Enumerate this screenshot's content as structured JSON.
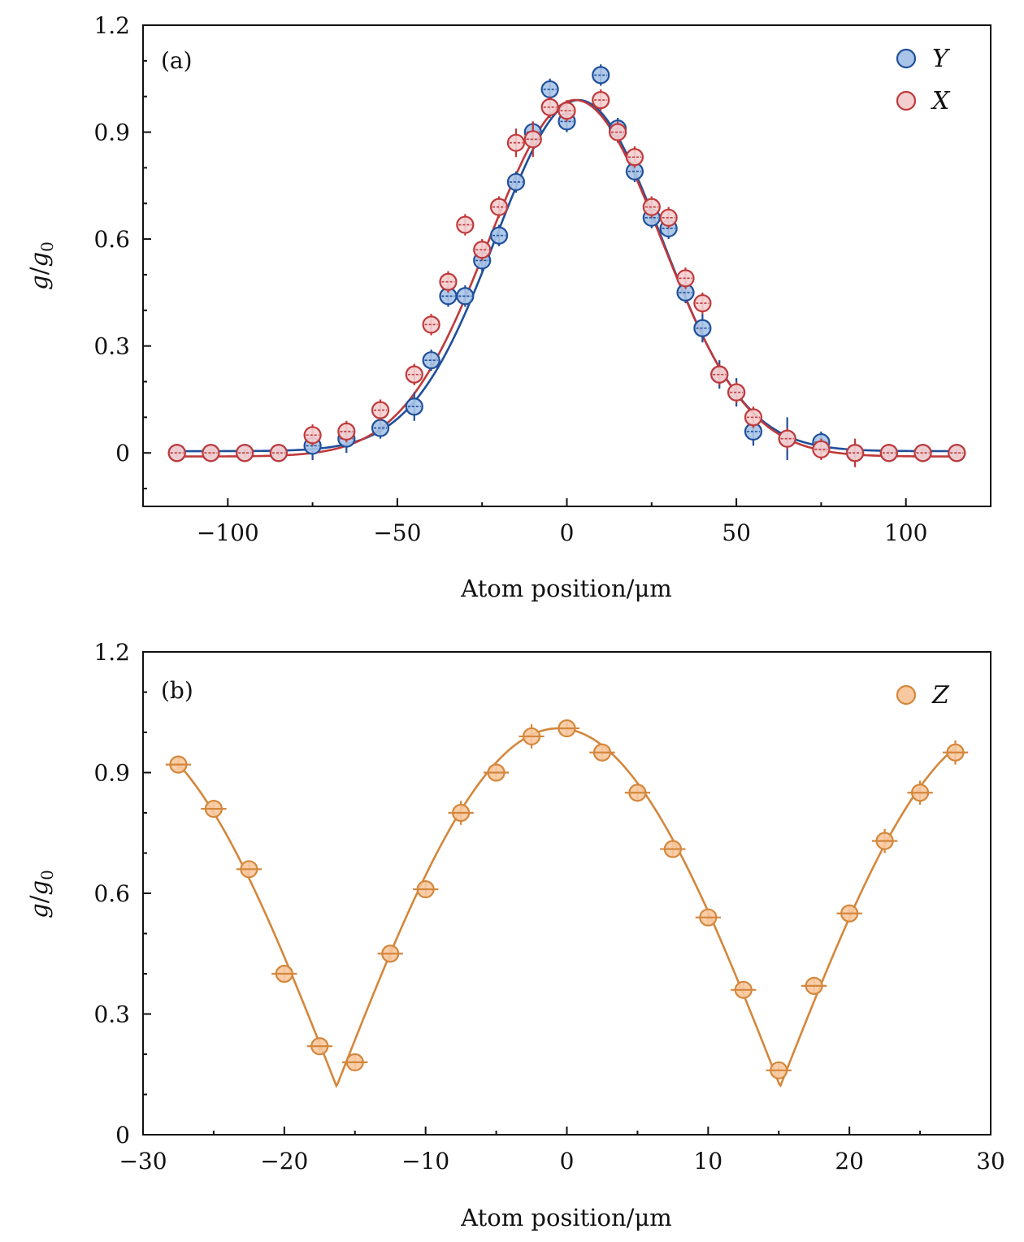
{
  "chart_data": [
    {
      "type": "scatter",
      "panel_label": "(a)",
      "xlabel": "Atom position/μm",
      "ylabel_main": "g",
      "ylabel_sub": "0",
      "xlim": [
        -125,
        125
      ],
      "ylim": [
        -0.15,
        1.2
      ],
      "xticks": [
        -100,
        -50,
        0,
        50,
        100
      ],
      "xtick_labels": [
        "−100",
        "−50",
        "0",
        "50",
        "100"
      ],
      "yticks": [
        0,
        0.3,
        0.6,
        0.9,
        1.2
      ],
      "ytick_labels": [
        "0",
        "0.3",
        "0.6",
        "0.9",
        "1.2"
      ],
      "legend_position": "top-right",
      "series": [
        {
          "name": "Y",
          "fill": "#a9c4e8",
          "edge": "#1f4f9a",
          "x": [
            -115,
            -105,
            -95,
            -85,
            -75,
            -65,
            -55,
            -45,
            -40,
            -35,
            -30,
            -25,
            -20,
            -15,
            -10,
            -5,
            0,
            10,
            15,
            20,
            25,
            30,
            35,
            40,
            45,
            50,
            55,
            65,
            75,
            85,
            95,
            105,
            115
          ],
          "y": [
            0.0,
            0.0,
            0.0,
            0.0,
            0.02,
            0.04,
            0.07,
            0.13,
            0.26,
            0.44,
            0.44,
            0.54,
            0.61,
            0.76,
            0.9,
            1.02,
            0.93,
            1.06,
            0.91,
            0.79,
            0.66,
            0.63,
            0.45,
            0.35,
            0.22,
            0.17,
            0.06,
            0.04,
            0.03,
            0.0,
            0.0,
            0.0,
            0.0
          ],
          "yerr": [
            0.01,
            0.01,
            0.01,
            0.01,
            0.04,
            0.04,
            0.03,
            0.04,
            0.03,
            0.03,
            0.03,
            0.03,
            0.03,
            0.03,
            0.03,
            0.03,
            0.03,
            0.03,
            0.03,
            0.03,
            0.03,
            0.03,
            0.03,
            0.04,
            0.04,
            0.04,
            0.04,
            0.06,
            0.03,
            0.02,
            0.01,
            0.01,
            0.01
          ]
        },
        {
          "name": "X",
          "fill": "#f4cfd0",
          "edge": "#c0393b",
          "x": [
            -115,
            -105,
            -95,
            -85,
            -75,
            -65,
            -55,
            -45,
            -40,
            -35,
            -30,
            -25,
            -20,
            -15,
            -10,
            -5,
            0,
            10,
            15,
            20,
            25,
            30,
            35,
            40,
            45,
            50,
            55,
            65,
            75,
            85,
            95,
            105,
            115
          ],
          "y": [
            0.0,
            0.0,
            0.0,
            0.0,
            0.05,
            0.06,
            0.12,
            0.22,
            0.36,
            0.48,
            0.64,
            0.57,
            0.69,
            0.87,
            0.88,
            0.97,
            0.96,
            0.99,
            0.9,
            0.83,
            0.69,
            0.66,
            0.49,
            0.42,
            0.22,
            0.17,
            0.1,
            0.04,
            0.01,
            0.0,
            0.0,
            0.0,
            0.0
          ],
          "yerr": [
            0.01,
            0.01,
            0.01,
            0.01,
            0.03,
            0.03,
            0.03,
            0.03,
            0.03,
            0.03,
            0.03,
            0.03,
            0.03,
            0.04,
            0.05,
            0.03,
            0.03,
            0.03,
            0.03,
            0.03,
            0.03,
            0.03,
            0.03,
            0.03,
            0.03,
            0.03,
            0.03,
            0.03,
            0.03,
            0.04,
            0.01,
            0.01,
            0.01
          ]
        }
      ]
    },
    {
      "type": "scatter",
      "panel_label": "(b)",
      "xlabel": "Atom position/μm",
      "ylabel_main": "g",
      "ylabel_sub": "0",
      "xlim": [
        -30,
        30
      ],
      "ylim": [
        0,
        1.2
      ],
      "xticks": [
        -30,
        -20,
        -10,
        0,
        10,
        20,
        30
      ],
      "xtick_labels": [
        "−30",
        "−20",
        "−10",
        "0",
        "10",
        "20",
        "30"
      ],
      "yticks": [
        0,
        0.3,
        0.6,
        0.9,
        1.2
      ],
      "ytick_labels": [
        "0",
        "0.3",
        "0.6",
        "0.9",
        "1.2"
      ],
      "legend_position": "top-right",
      "series": [
        {
          "name": "Z",
          "fill": "#f8c9a0",
          "edge": "#d4873c",
          "x": [
            -27.5,
            -25,
            -22.5,
            -20,
            -17.5,
            -15,
            -12.5,
            -10,
            -7.5,
            -5,
            -2.5,
            0,
            2.5,
            5,
            7.5,
            10,
            12.5,
            15,
            17.5,
            20,
            22.5,
            25,
            27.5
          ],
          "y": [
            0.92,
            0.81,
            0.66,
            0.4,
            0.22,
            0.18,
            0.45,
            0.61,
            0.8,
            0.9,
            0.99,
            1.01,
            0.95,
            0.85,
            0.71,
            0.54,
            0.36,
            0.16,
            0.37,
            0.55,
            0.73,
            0.85,
            0.95
          ],
          "yerr": [
            0.02,
            0.02,
            0.02,
            0.02,
            0.02,
            0.02,
            0.02,
            0.02,
            0.03,
            0.02,
            0.03,
            0.02,
            0.02,
            0.02,
            0.02,
            0.02,
            0.02,
            0.02,
            0.02,
            0.02,
            0.03,
            0.03,
            0.03
          ],
          "xerr": [
            0.9,
            0.9,
            0.9,
            0.9,
            0.9,
            0.9,
            0.9,
            0.9,
            0.9,
            0.9,
            0.9,
            0.9,
            0.9,
            0.9,
            0.9,
            0.9,
            0.9,
            0.9,
            0.9,
            0.9,
            0.9,
            0.9,
            0.9
          ]
        }
      ]
    }
  ]
}
